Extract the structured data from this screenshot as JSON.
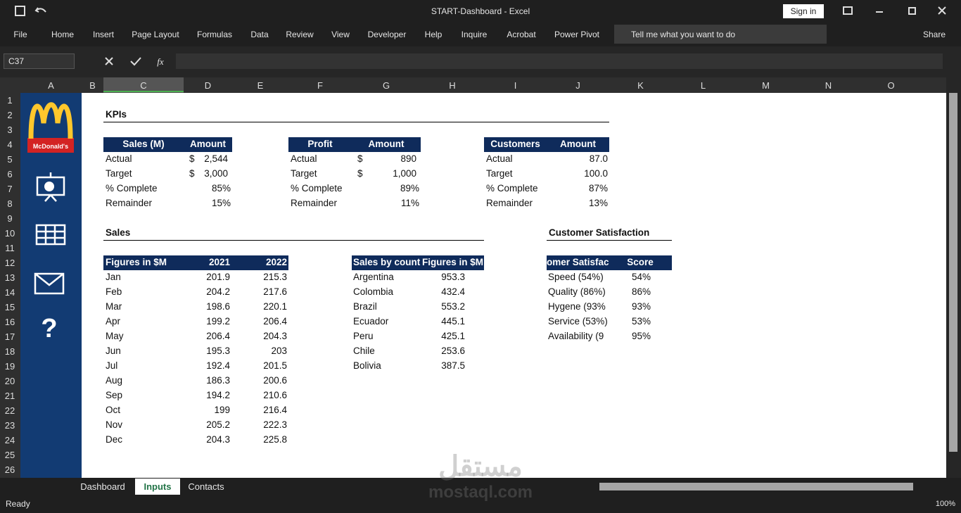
{
  "window": {
    "title": "START-Dashboard  -  Excel",
    "sign_in": "Sign in"
  },
  "ribbon": {
    "tabs": [
      "File",
      "Home",
      "Insert",
      "Page Layout",
      "Formulas",
      "Data",
      "Review",
      "View",
      "Developer",
      "Help",
      "Inquire",
      "Acrobat",
      "Power Pivot"
    ],
    "tell_me": "Tell me what you want to do",
    "share": "Share"
  },
  "formula_bar": {
    "name_box": "C37",
    "fx": "fx"
  },
  "columns": [
    "A",
    "B",
    "C",
    "D",
    "E",
    "F",
    "G",
    "H",
    "I",
    "J",
    "K",
    "L",
    "M",
    "N",
    "O"
  ],
  "rows": [
    1,
    2,
    3,
    4,
    5,
    6,
    7,
    8,
    9,
    10,
    11,
    12,
    13,
    14,
    15,
    16,
    17,
    18,
    19,
    20,
    21,
    22,
    23,
    24,
    25,
    26
  ],
  "sidebar": {
    "brand": "McDonald's",
    "help": "?"
  },
  "kpis": {
    "title": "KPIs",
    "tables": [
      {
        "headers": [
          "Sales (M)",
          "Amount"
        ],
        "rows": [
          {
            "label": "Actual",
            "currency": "$",
            "value": "2,544"
          },
          {
            "label": "Target",
            "currency": "$",
            "value": "3,000"
          },
          {
            "label": "% Complete",
            "value": "85%"
          },
          {
            "label": "Remainder",
            "value": "15%"
          }
        ]
      },
      {
        "headers": [
          "Profit",
          "Amount"
        ],
        "rows": [
          {
            "label": "Actual",
            "currency": "$",
            "value": "890"
          },
          {
            "label": "Target",
            "currency": "$",
            "value": "1,000"
          },
          {
            "label": "% Complete",
            "value": "89%"
          },
          {
            "label": "Remainder",
            "value": "11%"
          }
        ]
      },
      {
        "headers": [
          "Customers",
          "Amount"
        ],
        "rows": [
          {
            "label": "Actual",
            "value": "87.0"
          },
          {
            "label": "Target",
            "value": "100.0"
          },
          {
            "label": "% Complete",
            "value": "87%"
          },
          {
            "label": "Remainder",
            "value": "13%"
          }
        ]
      }
    ]
  },
  "sales": {
    "title": "Sales",
    "headers": [
      "Figures in $M",
      "2021",
      "2022"
    ],
    "rows": [
      [
        "Jan",
        201.9,
        215.3
      ],
      [
        "Feb",
        204.2,
        217.6
      ],
      [
        "Mar",
        198.6,
        220.1
      ],
      [
        "Apr",
        199.2,
        206.4
      ],
      [
        "May",
        206.4,
        204.3
      ],
      [
        "Jun",
        195.3,
        203
      ],
      [
        "Jul",
        192.4,
        201.5
      ],
      [
        "Aug",
        186.3,
        200.6
      ],
      [
        "Sep",
        194.2,
        210.6
      ],
      [
        "Oct",
        199,
        216.4
      ],
      [
        "Nov",
        205.2,
        222.3
      ],
      [
        "Dec",
        204.3,
        225.8
      ]
    ]
  },
  "countries": {
    "headers": [
      "Sales by count",
      "Figures in $M"
    ],
    "rows": [
      [
        "Argentina",
        953.3
      ],
      [
        "Colombia",
        432.4
      ],
      [
        "Brazil",
        553.2
      ],
      [
        "Ecuador",
        445.1
      ],
      [
        "Peru",
        425.1
      ],
      [
        "Chile",
        253.6
      ],
      [
        "Bolivia",
        387.5
      ]
    ]
  },
  "satisfaction": {
    "title": "Customer Satisfaction",
    "headers": [
      "omer Satisfac",
      "Score"
    ],
    "rows": [
      [
        "Speed (54%)",
        "54%"
      ],
      [
        "Quality (86%)",
        "86%"
      ],
      [
        "Hygene (93%",
        "93%"
      ],
      [
        "Service (53%)",
        "53%"
      ],
      [
        "Availability (9",
        "95%"
      ]
    ]
  },
  "sheet_tabs": {
    "tabs": [
      "Dashboard",
      "Inputs",
      "Contacts"
    ],
    "active": 1
  },
  "status": {
    "state": "Ready",
    "zoom": "100%"
  },
  "watermark": {
    "arabic": "مستقل",
    "latin": "mostaql.com"
  }
}
